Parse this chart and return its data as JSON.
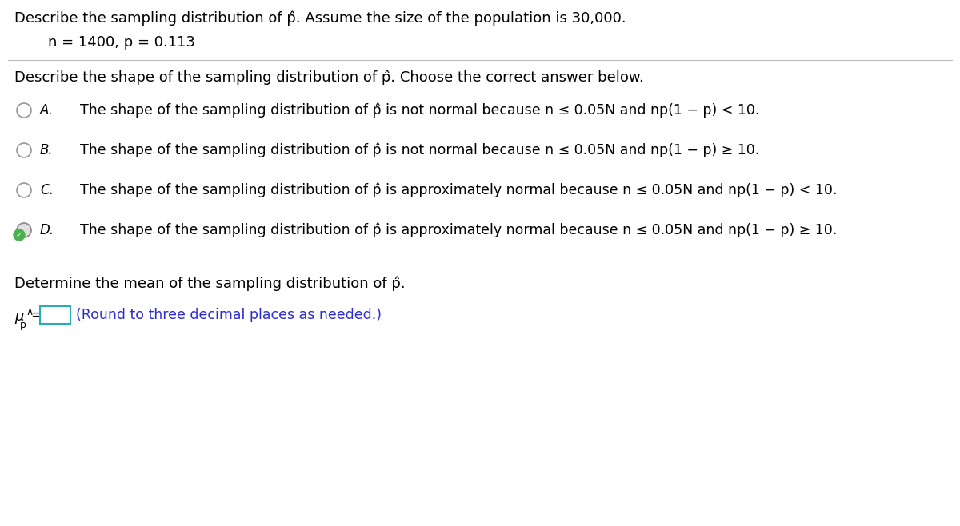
{
  "title_line1": "Describe the sampling distribution of p̂. Assume the size of the population is 30,000.",
  "title_line2": "n = 1400, p = 0.113",
  "question": "Describe the shape of the sampling distribution of p̂. Choose the correct answer below.",
  "options": [
    {
      "label": "A.",
      "text": "The shape of the sampling distribution of p̂ is not normal because n ≤ 0.05N and np(1 − p) < 10.",
      "selected": false
    },
    {
      "label": "B.",
      "text": "The shape of the sampling distribution of p̂ is not normal because n ≤ 0.05N and np(1 − p) ≥ 10.",
      "selected": false
    },
    {
      "label": "C.",
      "text": "The shape of the sampling distribution of p̂ is approximately normal because n ≤ 0.05N and np(1 − p) < 10.",
      "selected": false
    },
    {
      "label": "D.",
      "text": "The shape of the sampling distribution of p̂ is approximately normal because n ≤ 0.05N and np(1 − p) ≥ 10.",
      "selected": true
    }
  ],
  "mean_label": "Determine the mean of the sampling distribution of p̂.",
  "mean_hint": "(Round to three decimal places as needed.)",
  "background_color": "#ffffff",
  "text_color": "#000000",
  "hint_color": "#2b2bd4",
  "selected_circle_color": "#4CAF50",
  "selected_circle_bg": "#e0e0e0",
  "unselected_circle_color": "#999999",
  "separator_color": "#bbbbbb",
  "input_box_color": "#29adb5",
  "font_size_title": 13,
  "font_size_option": 12.5,
  "font_size_label": 12
}
